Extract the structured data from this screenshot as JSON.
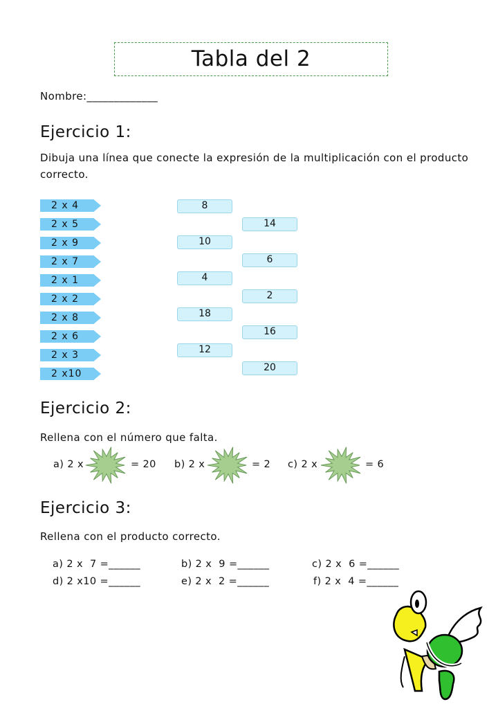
{
  "title": "Tabla del 2",
  "name_label": "Nombre:_____________",
  "exercise1": {
    "heading": "Ejercicio 1:",
    "instructions_line1": "Dibuja una línea que conecte la expresión de la multiplicación con el producto",
    "instructions_line2": "correcto.",
    "expressions": [
      "2 x  4",
      "2 x  5",
      "2 x  9",
      "2 x  7",
      "2 x  1",
      "2 x  2",
      "2 x  8",
      "2 x  6",
      "2 x  3",
      "2 x10"
    ],
    "products_col1": [
      "8",
      "10",
      "4",
      "18",
      "12"
    ],
    "products_col2": [
      "14",
      "6",
      "2",
      "16",
      "20"
    ]
  },
  "exercise2": {
    "heading": "Ejercicio 2:",
    "instructions": "Rellena con el número que falta.",
    "items": [
      {
        "prefix": "a) 2 x",
        "suffix": "= 20"
      },
      {
        "prefix": "b) 2 x",
        "suffix": "= 2"
      },
      {
        "prefix": "c) 2 x",
        "suffix": "= 6"
      }
    ]
  },
  "exercise3": {
    "heading": "Ejercicio 3:",
    "instructions": "Rellena con el producto correcto.",
    "items": [
      "a) 2 x  7 =______",
      "b) 2 x  9 =______",
      "c) 2 x  6 =______",
      "d) 2 x10 =______",
      "e) 2 x  2 =______",
      "f) 2 x  4 =______"
    ]
  },
  "colors": {
    "tag": "#7ccdf5",
    "box": "#d3f2fc",
    "star": "#a6cf8f",
    "title_border": "#4a9a4a"
  },
  "illustration": "flying-koopa-turtle"
}
